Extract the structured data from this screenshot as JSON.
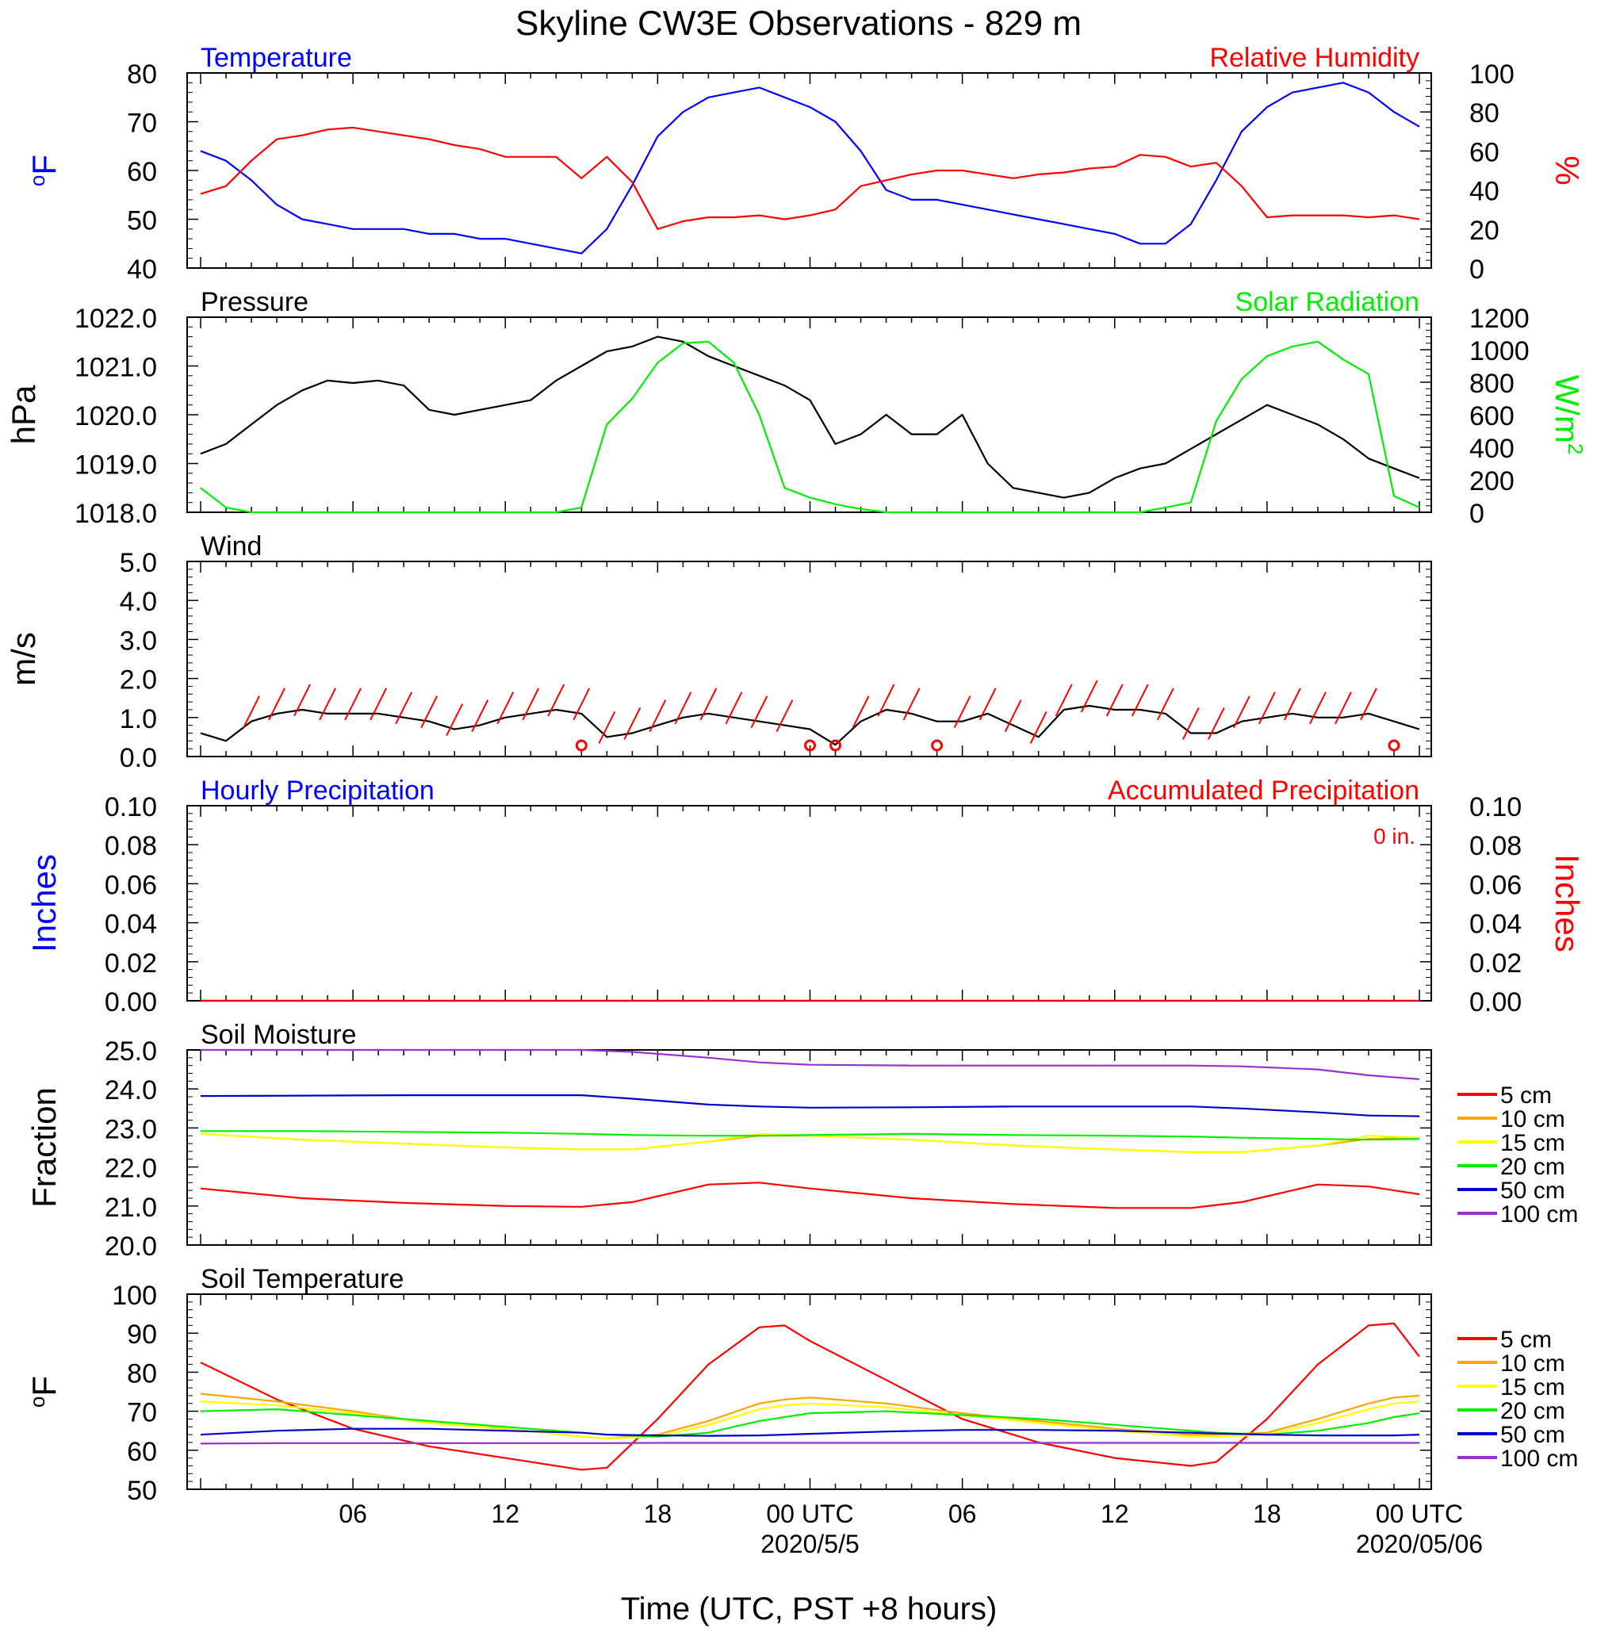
{
  "title": "Skyline CW3E Observations - 829 m",
  "x_axis": {
    "label": "Time (UTC, PST +8 hours)",
    "tick_labels": [
      "06",
      "12",
      "18",
      "00 UTC",
      "06",
      "12",
      "18",
      "00 UTC"
    ],
    "date_labels": [
      "2020/5/5",
      "2020/05/06"
    ]
  },
  "colors": {
    "temperature": "#0000ff",
    "humidity": "#ff0000",
    "pressure": "#000000",
    "solar": "#00ee00",
    "wind": "#000000",
    "wind_barb": "#ff0000",
    "hourly_precip": "#0000ff",
    "accum_precip": "#ff0000",
    "depth_5cm": "#ff0000",
    "depth_10cm": "#ffa500",
    "depth_15cm": "#ffff00",
    "depth_20cm": "#00ee00",
    "depth_50cm": "#0000cc",
    "depth_100cm": "#9932cc"
  },
  "chart_data": [
    {
      "id": "temp_rh",
      "type": "line",
      "left_title": "Temperature",
      "right_title": "Relative Humidity",
      "y_left": {
        "label": "oF",
        "range": [
          40,
          80
        ],
        "ticks": [
          "40",
          "50",
          "60",
          "70",
          "80"
        ]
      },
      "y_right": {
        "label": "%",
        "range": [
          0,
          100
        ],
        "ticks": [
          "0",
          "20",
          "40",
          "60",
          "80",
          "100"
        ]
      },
      "series": [
        {
          "axis": "left",
          "x_hours": [
            0,
            1,
            2,
            3,
            4,
            5,
            6,
            7,
            8,
            9,
            10,
            11,
            12,
            13,
            14,
            15,
            16,
            17,
            18,
            19,
            20,
            21,
            22,
            23,
            24,
            25,
            26,
            27,
            28,
            29,
            30,
            31,
            32,
            33,
            34,
            35,
            36,
            37,
            38,
            39,
            40,
            41,
            42,
            43,
            44,
            45,
            46,
            47,
            48
          ],
          "values": [
            64,
            62,
            58,
            53,
            50,
            49,
            48,
            48,
            48,
            47,
            47,
            46,
            46,
            45,
            44,
            43,
            48,
            57,
            67,
            72,
            75,
            76,
            77,
            75,
            73,
            70,
            64,
            56,
            54,
            54,
            53,
            52,
            51,
            50,
            49,
            48,
            47,
            45,
            45,
            49,
            58,
            68,
            73,
            76,
            77,
            78,
            76,
            72,
            69
          ]
        },
        {
          "axis": "right",
          "x_hours": [
            0,
            1,
            2,
            3,
            4,
            5,
            6,
            7,
            8,
            9,
            10,
            11,
            12,
            13,
            14,
            15,
            16,
            17,
            18,
            19,
            20,
            21,
            22,
            23,
            24,
            25,
            26,
            27,
            28,
            29,
            30,
            31,
            32,
            33,
            34,
            35,
            36,
            37,
            38,
            39,
            40,
            41,
            42,
            43,
            44,
            45,
            46,
            47,
            48
          ],
          "values": [
            38,
            42,
            55,
            66,
            68,
            71,
            72,
            70,
            68,
            66,
            63,
            61,
            57,
            57,
            57,
            46,
            57,
            44,
            20,
            24,
            26,
            26,
            27,
            25,
            27,
            30,
            42,
            45,
            48,
            50,
            50,
            48,
            46,
            48,
            49,
            51,
            52,
            58,
            57,
            52,
            54,
            42,
            26,
            27,
            27,
            27,
            26,
            27,
            25
          ]
        }
      ]
    },
    {
      "id": "pressure_solar",
      "type": "line",
      "left_title": "Pressure",
      "right_title": "Solar Radiation",
      "y_left": {
        "label": "hPa",
        "range": [
          1018,
          1022
        ],
        "ticks": [
          "1018.0",
          "1019.0",
          "1020.0",
          "1021.0",
          "1022.0"
        ]
      },
      "y_right": {
        "label": "W/m",
        "label_superscript": "2",
        "range": [
          0,
          1200
        ],
        "ticks": [
          "0",
          "200",
          "400",
          "600",
          "800",
          "1000",
          "1200"
        ]
      },
      "series": [
        {
          "axis": "left",
          "x_hours": [
            0,
            1,
            2,
            3,
            4,
            5,
            6,
            7,
            8,
            9,
            10,
            11,
            12,
            13,
            14,
            15,
            16,
            17,
            18,
            19,
            20,
            21,
            22,
            23,
            24,
            25,
            26,
            27,
            28,
            29,
            30,
            31,
            32,
            33,
            34,
            35,
            36,
            37,
            38,
            39,
            40,
            41,
            42,
            43,
            44,
            45,
            46,
            47,
            48
          ],
          "values": [
            1019.2,
            1019.4,
            1019.8,
            1020.2,
            1020.5,
            1020.7,
            1020.65,
            1020.7,
            1020.6,
            1020.1,
            1020.0,
            1020.1,
            1020.2,
            1020.3,
            1020.7,
            1021.0,
            1021.3,
            1021.4,
            1021.6,
            1021.5,
            1021.2,
            1021.0,
            1020.8,
            1020.6,
            1020.3,
            1019.4,
            1019.6,
            1020.0,
            1019.6,
            1019.6,
            1020.0,
            1019.0,
            1018.5,
            1018.4,
            1018.3,
            1018.4,
            1018.7,
            1018.9,
            1019.0,
            1019.3,
            1019.6,
            1019.9,
            1020.2,
            1020.0,
            1019.8,
            1019.5,
            1019.1,
            1018.9,
            1018.7
          ]
        },
        {
          "axis": "right",
          "x_hours": [
            0,
            1,
            2,
            3,
            4,
            5,
            6,
            7,
            8,
            9,
            10,
            11,
            12,
            13,
            14,
            15,
            16,
            17,
            18,
            19,
            20,
            21,
            22,
            23,
            24,
            25,
            26,
            27,
            28,
            29,
            30,
            31,
            32,
            33,
            34,
            35,
            36,
            37,
            38,
            39,
            40,
            41,
            42,
            43,
            44,
            45,
            46,
            47,
            48
          ],
          "values": [
            150,
            30,
            0,
            0,
            0,
            0,
            0,
            0,
            0,
            0,
            0,
            0,
            0,
            0,
            0,
            30,
            540,
            700,
            920,
            1040,
            1050,
            920,
            600,
            150,
            90,
            50,
            20,
            0,
            0,
            0,
            0,
            0,
            0,
            0,
            0,
            0,
            0,
            0,
            30,
            60,
            560,
            820,
            960,
            1020,
            1050,
            940,
            850,
            100,
            30
          ]
        }
      ]
    },
    {
      "id": "wind",
      "type": "line",
      "left_title": "Wind",
      "y_left": {
        "label": "m/s",
        "range": [
          0,
          5
        ],
        "ticks": [
          "0.0",
          "1.0",
          "2.0",
          "3.0",
          "4.0",
          "5.0"
        ]
      },
      "series": [
        {
          "axis": "left",
          "x_hours": [
            0,
            1,
            2,
            3,
            4,
            5,
            6,
            7,
            8,
            9,
            10,
            11,
            12,
            13,
            14,
            15,
            16,
            17,
            18,
            19,
            20,
            21,
            22,
            23,
            24,
            25,
            26,
            27,
            28,
            29,
            30,
            31,
            32,
            33,
            34,
            35,
            36,
            37,
            38,
            39,
            40,
            41,
            42,
            43,
            44,
            45,
            46,
            47,
            48
          ],
          "values": [
            0.6,
            0.4,
            0.9,
            1.1,
            1.2,
            1.1,
            1.1,
            1.1,
            1.0,
            0.9,
            0.7,
            0.8,
            1.0,
            1.1,
            1.2,
            1.1,
            0.5,
            0.6,
            0.8,
            1.0,
            1.1,
            1.0,
            0.9,
            0.8,
            0.7,
            0.3,
            0.9,
            1.2,
            1.1,
            0.9,
            0.9,
            1.1,
            0.8,
            0.5,
            1.2,
            1.3,
            1.2,
            1.2,
            1.1,
            0.6,
            0.6,
            0.9,
            1.0,
            1.1,
            1.0,
            1.0,
            1.1,
            0.9,
            0.7
          ]
        }
      ],
      "calm_markers_hours": [
        15,
        24,
        25,
        29,
        47
      ],
      "barb_hours": [
        2,
        3,
        4,
        5,
        6,
        7,
        8,
        9,
        10,
        11,
        12,
        13,
        14,
        15,
        16,
        17,
        18,
        19,
        20,
        21,
        22,
        23,
        26,
        27,
        28,
        30,
        31,
        32,
        33,
        34,
        35,
        36,
        37,
        38,
        39,
        40,
        41,
        42,
        43,
        44,
        45,
        46
      ]
    },
    {
      "id": "precipitation",
      "type": "line",
      "left_title": "Hourly Precipitation",
      "right_title": "Accumulated Precipitation",
      "annotation": "0 in.",
      "y_left": {
        "label": "Inches",
        "range": [
          0,
          0.1
        ],
        "ticks": [
          "0.00",
          "0.02",
          "0.04",
          "0.06",
          "0.08",
          "0.10"
        ]
      },
      "y_right": {
        "label": "Inches",
        "range": [
          0,
          0.1
        ],
        "ticks": [
          "0.00",
          "0.02",
          "0.04",
          "0.06",
          "0.08",
          "0.10"
        ]
      },
      "series": [
        {
          "axis": "left",
          "x_hours": [
            0,
            48
          ],
          "values": [
            0,
            0
          ]
        },
        {
          "axis": "right",
          "x_hours": [
            0,
            48
          ],
          "values": [
            0,
            0
          ]
        }
      ]
    },
    {
      "id": "soil_moisture",
      "type": "line",
      "left_title": "Soil Moisture",
      "y_left": {
        "label": "Fraction",
        "range": [
          20,
          25
        ],
        "ticks": [
          "20.0",
          "21.0",
          "22.0",
          "23.0",
          "24.0",
          "25.0"
        ]
      },
      "legend": [
        "5 cm",
        "10 cm",
        "15 cm",
        "20 cm",
        "50 cm",
        "100 cm"
      ],
      "x_hours": [
        0,
        4,
        8,
        12,
        15,
        17,
        20,
        22,
        24,
        28,
        32,
        36,
        39,
        41,
        44,
        46,
        48
      ],
      "series": [
        {
          "name": "5 cm",
          "values": [
            21.45,
            21.2,
            21.08,
            21.0,
            20.98,
            21.1,
            21.55,
            21.6,
            21.45,
            21.2,
            21.05,
            20.95,
            20.95,
            21.1,
            21.55,
            21.5,
            21.3
          ]
        },
        {
          "name": "10 cm",
          "values": [
            22.85,
            22.7,
            22.6,
            22.5,
            22.45,
            22.45,
            22.65,
            22.8,
            22.8,
            22.7,
            22.55,
            22.45,
            22.38,
            22.38,
            22.55,
            22.72,
            22.75
          ]
        },
        {
          "name": "15 cm",
          "values": [
            22.85,
            22.7,
            22.6,
            22.5,
            22.45,
            22.45,
            22.65,
            22.85,
            22.8,
            22.7,
            22.55,
            22.45,
            22.38,
            22.38,
            22.55,
            22.8,
            22.75
          ]
        },
        {
          "name": "20 cm",
          "values": [
            22.92,
            22.92,
            22.9,
            22.88,
            22.85,
            22.82,
            22.8,
            22.8,
            22.82,
            22.85,
            22.82,
            22.8,
            22.78,
            22.75,
            22.72,
            22.7,
            22.72
          ]
        },
        {
          "name": "50 cm",
          "values": [
            23.82,
            23.83,
            23.84,
            23.84,
            23.84,
            23.75,
            23.6,
            23.55,
            23.52,
            23.53,
            23.55,
            23.55,
            23.55,
            23.5,
            23.4,
            23.32,
            23.3
          ]
        },
        {
          "name": "100 cm",
          "values": [
            25.0,
            25.0,
            25.0,
            25.0,
            25.0,
            24.95,
            24.8,
            24.68,
            24.62,
            24.6,
            24.6,
            24.6,
            24.6,
            24.58,
            24.5,
            24.35,
            24.25
          ]
        }
      ]
    },
    {
      "id": "soil_temperature",
      "type": "line",
      "left_title": "Soil Temperature",
      "y_left": {
        "label": "oF",
        "range": [
          50,
          100
        ],
        "ticks": [
          "50",
          "60",
          "70",
          "80",
          "90",
          "100"
        ]
      },
      "legend": [
        "5 cm",
        "10 cm",
        "15 cm",
        "20 cm",
        "50 cm",
        "100 cm"
      ],
      "x_hours": [
        0,
        3,
        6,
        9,
        12,
        15,
        16,
        18,
        20,
        22,
        23,
        24,
        27,
        30,
        33,
        36,
        39,
        40,
        42,
        44,
        46,
        47,
        48
      ],
      "series": [
        {
          "name": "5 cm",
          "values": [
            82.5,
            73.0,
            65.5,
            61.0,
            58.0,
            55.0,
            55.5,
            68.0,
            82.0,
            91.5,
            92.0,
            88.0,
            78.0,
            68.0,
            62.0,
            58.0,
            56.0,
            57.0,
            68.0,
            82.0,
            92.0,
            92.5,
            84.0
          ]
        },
        {
          "name": "10 cm",
          "values": [
            74.5,
            72.5,
            70.0,
            67.0,
            65.5,
            63.5,
            63.0,
            64.0,
            67.5,
            72.0,
            73.0,
            73.5,
            72.0,
            69.5,
            67.5,
            65.5,
            64.0,
            64.0,
            64.5,
            68.0,
            72.0,
            73.5,
            74.0
          ]
        },
        {
          "name": "15 cm",
          "values": [
            72.5,
            71.5,
            69.5,
            67.0,
            65.5,
            63.5,
            63.0,
            63.5,
            66.5,
            70.5,
            71.5,
            72.0,
            71.0,
            69.0,
            67.0,
            65.0,
            63.5,
            63.5,
            64.0,
            67.0,
            70.5,
            72.0,
            72.5
          ]
        },
        {
          "name": "20 cm",
          "values": [
            70.0,
            70.5,
            69.0,
            67.5,
            66.0,
            64.5,
            64.0,
            63.5,
            64.5,
            67.5,
            68.5,
            69.5,
            70.0,
            69.0,
            68.0,
            66.5,
            65.0,
            64.5,
            64.0,
            65.0,
            67.0,
            68.5,
            69.5
          ]
        },
        {
          "name": "50 cm",
          "values": [
            64.0,
            65.0,
            65.5,
            65.5,
            65.0,
            64.5,
            64.0,
            63.8,
            63.7,
            63.8,
            64.0,
            64.2,
            64.8,
            65.2,
            65.2,
            65.0,
            64.5,
            64.3,
            64.0,
            63.8,
            63.8,
            63.8,
            64.0
          ]
        },
        {
          "name": "100 cm",
          "values": [
            61.7,
            61.8,
            61.8,
            61.8,
            61.8,
            61.8,
            61.8,
            61.9,
            61.9,
            61.9,
            61.9,
            61.9,
            61.9,
            61.9,
            61.9,
            61.9,
            61.9,
            61.9,
            61.9,
            61.9,
            61.9,
            61.9,
            61.9
          ]
        }
      ]
    }
  ]
}
